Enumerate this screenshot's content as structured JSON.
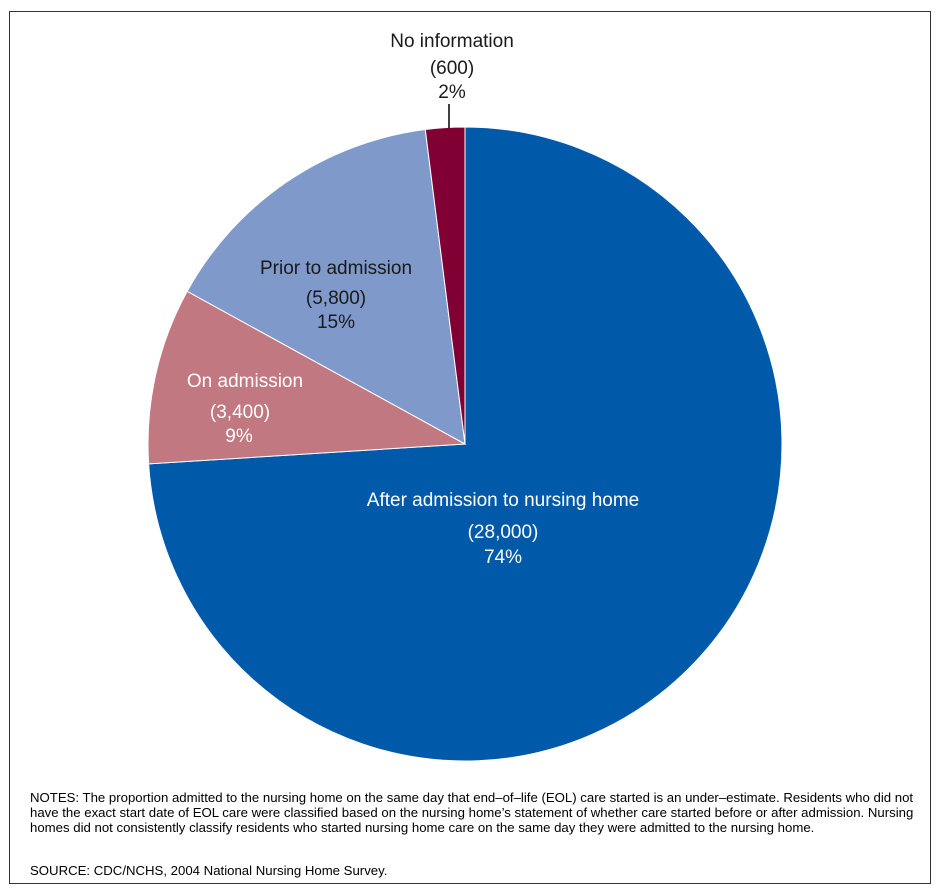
{
  "chart_data": {
    "type": "pie",
    "slices": [
      {
        "label": "After admission to nursing home",
        "count": "(28,000)",
        "value": 74,
        "percent": "74%",
        "color": "#005aa9",
        "text_color": "#ffffff"
      },
      {
        "label": "On admission",
        "count": "(3,400)",
        "value": 9,
        "percent": "9%",
        "color": "#c27880",
        "text_color": "#ffffff"
      },
      {
        "label": "Prior to admission",
        "count": "(5,800)",
        "value": 15,
        "percent": "15%",
        "color": "#7f99cb",
        "text_color": "#1a1a1a"
      },
      {
        "label": "No information",
        "count": "(600)",
        "value": 2,
        "percent": "2%",
        "color": "#800033",
        "text_color": "#1a1a1a"
      }
    ]
  },
  "notes": "NOTES: The proportion admitted to the nursing home on the same day that end–of–life (EOL) care started is an under–estimate. Residents who did not have the exact start date of EOL care were classified based on the nursing home’s statement of whether care started before or after admission. Nursing homes did not consistently classify residents who started nursing home care on the same day they were admitted to the nursing home.",
  "source": "SOURCE: CDC/NCHS, 2004 National Nursing Home Survey."
}
